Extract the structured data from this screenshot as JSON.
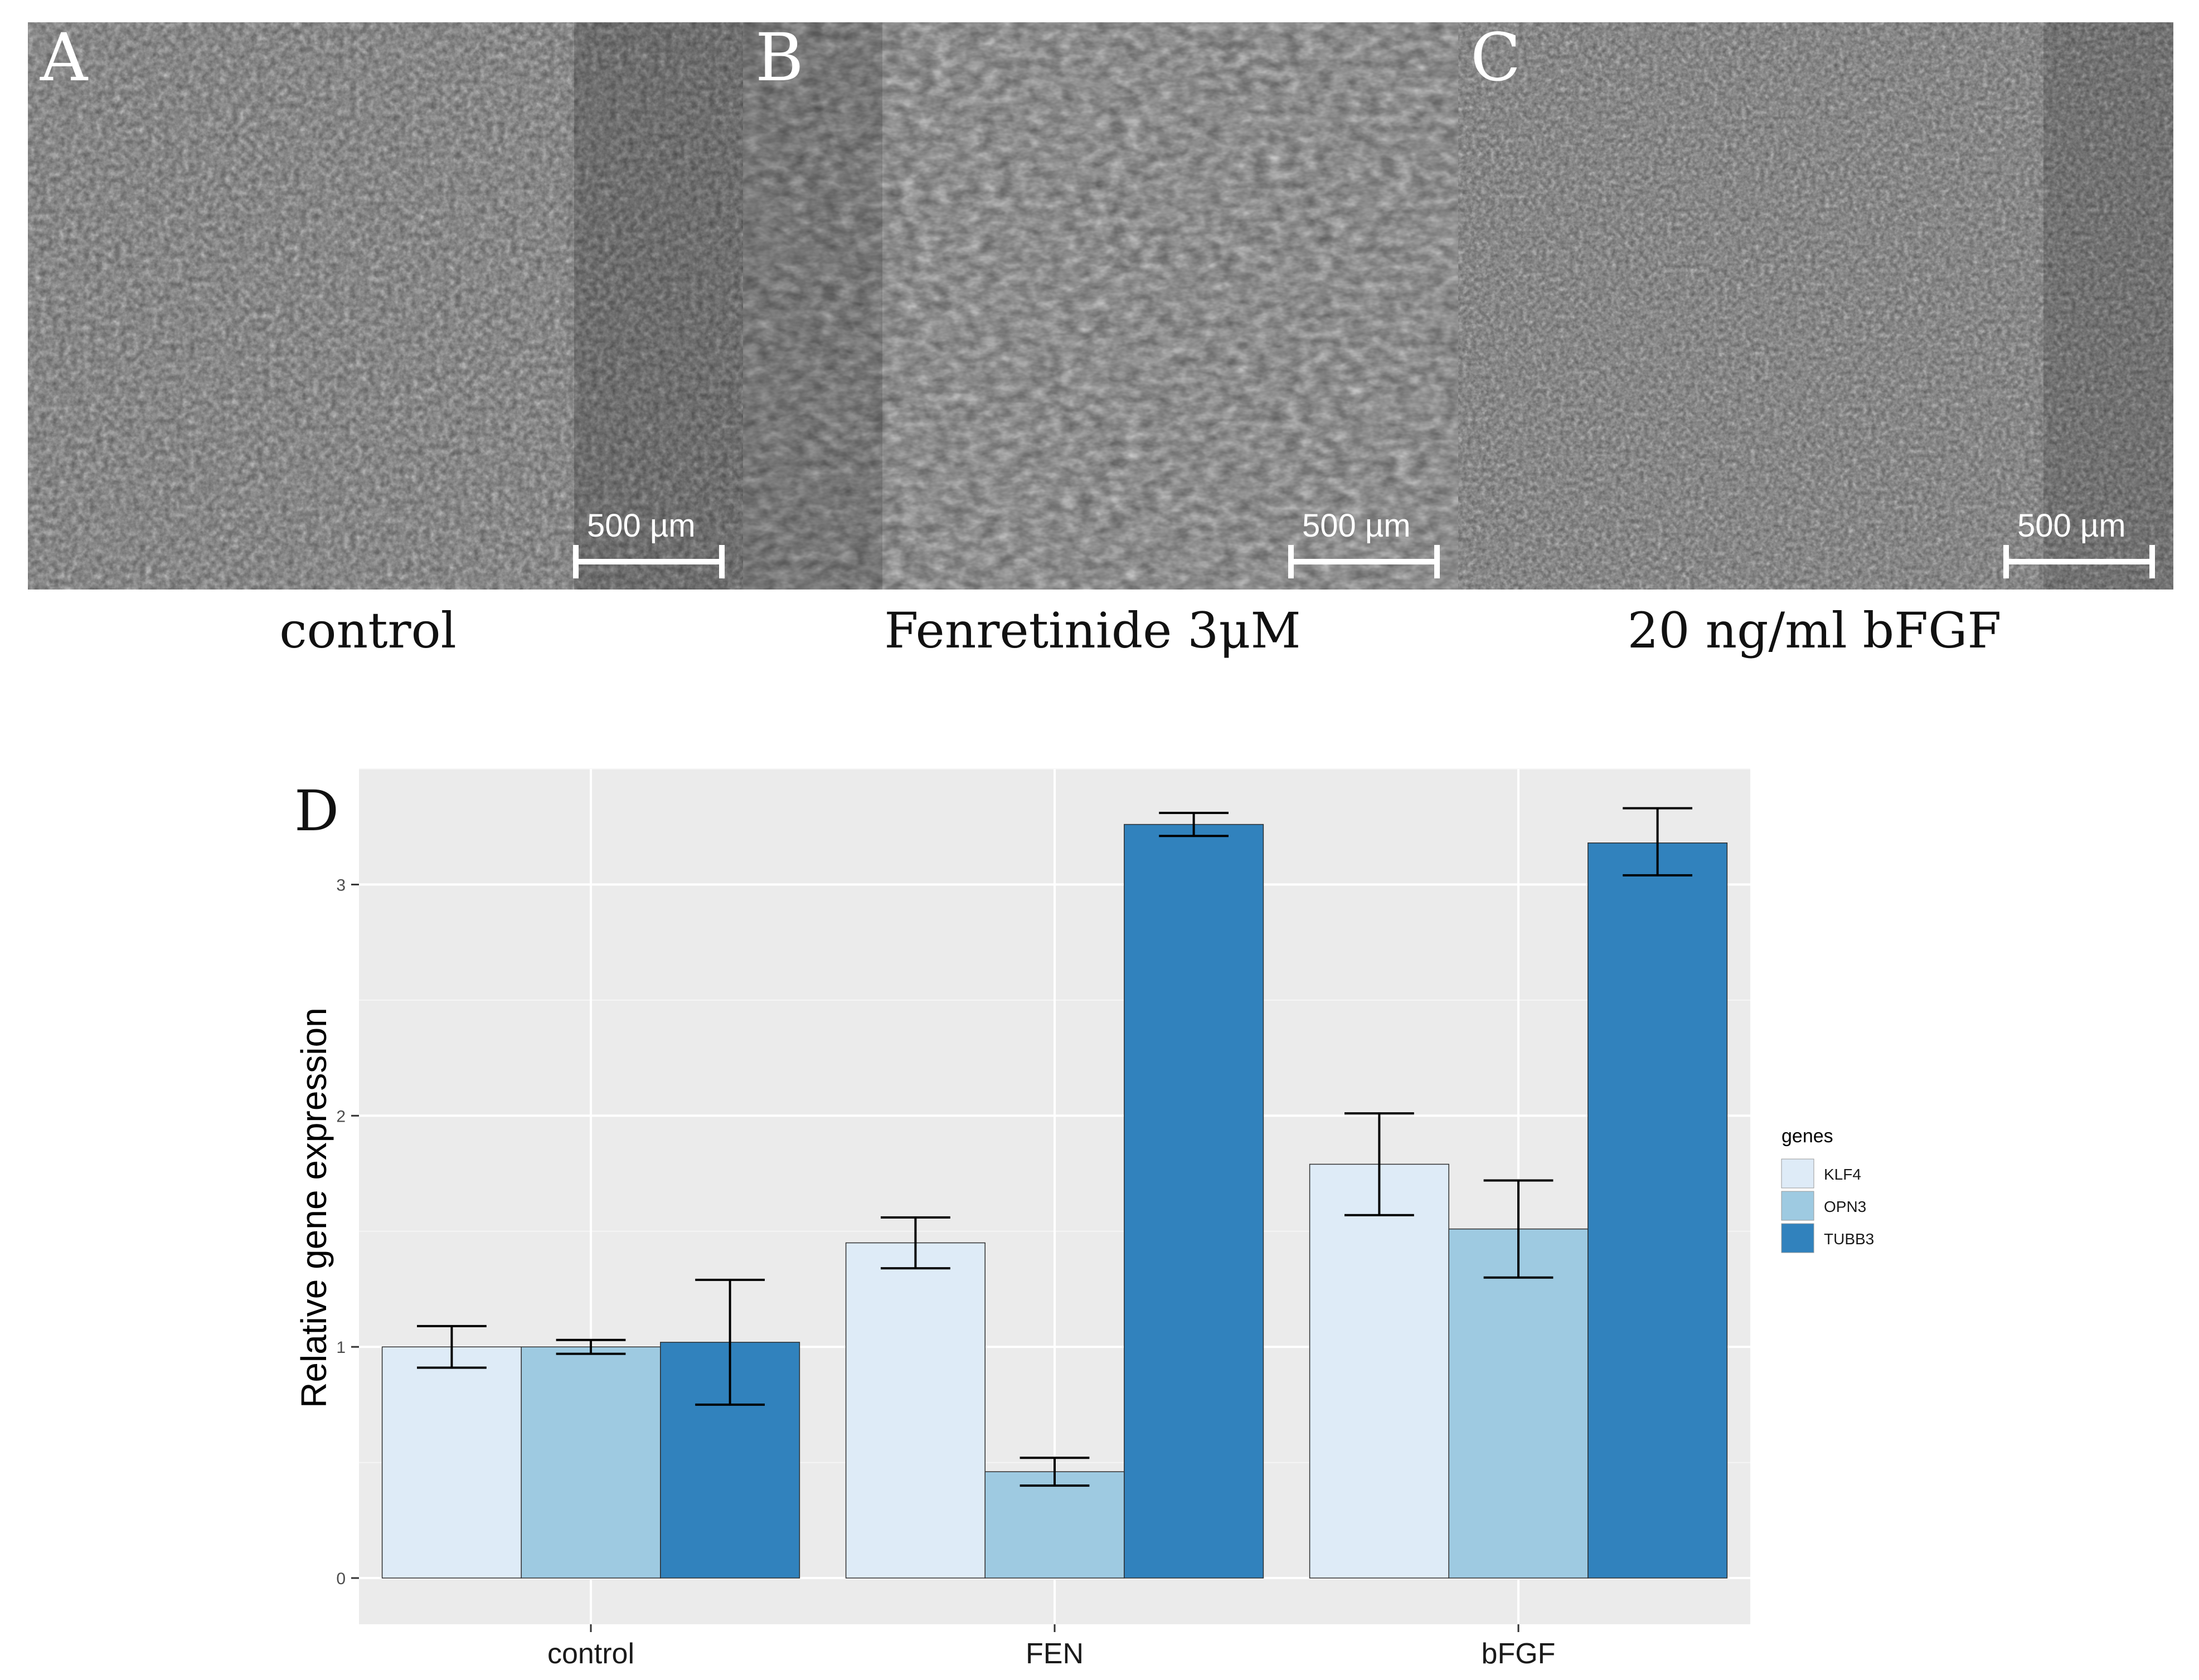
{
  "panels": [
    {
      "letter": "A",
      "scale_bar": "500 µm",
      "caption": "control"
    },
    {
      "letter": "B",
      "scale_bar": "500 µm",
      "caption": "Fenretinide 3μM"
    },
    {
      "letter": "C",
      "scale_bar": "500 µm",
      "caption": "20 ng/ml bFGF"
    }
  ],
  "chart_panel_letter": "D",
  "chart_data": {
    "type": "bar",
    "title": "",
    "xlabel": "",
    "ylabel": "Relative gene expression",
    "categories": [
      "control",
      "FEN",
      "bFGF"
    ],
    "ylim": [
      -0.2,
      3.5
    ],
    "yticks": [
      0,
      1,
      2,
      3
    ],
    "grid": true,
    "legend_title": "genes",
    "legend_position": "right",
    "series": [
      {
        "name": "KLF4",
        "color": "#deebf7",
        "values": [
          1.0,
          1.45,
          1.79
        ],
        "err_low": [
          0.91,
          1.34,
          1.57
        ],
        "err_high": [
          1.09,
          1.56,
          2.01
        ]
      },
      {
        "name": "OPN3",
        "color": "#9ecae1",
        "values": [
          1.0,
          0.46,
          1.51
        ],
        "err_low": [
          0.97,
          0.4,
          1.3
        ],
        "err_high": [
          1.03,
          0.52,
          1.72
        ]
      },
      {
        "name": "TUBB3",
        "color": "#3182bd",
        "values": [
          1.02,
          3.26,
          3.18
        ],
        "err_low": [
          0.75,
          3.21,
          3.04
        ],
        "err_high": [
          1.29,
          3.31,
          3.33
        ]
      }
    ]
  }
}
